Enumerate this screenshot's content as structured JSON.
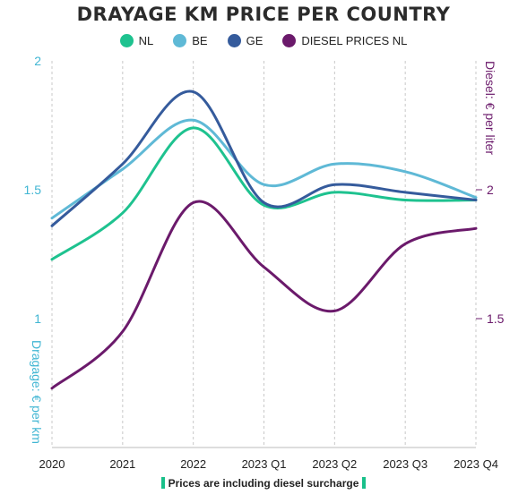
{
  "chart_data": {
    "type": "line",
    "title": "DRAYAGE KM PRICE PER COUNTRY",
    "categories": [
      "2020",
      "2021",
      "2022",
      "2023 Q1",
      "2023 Q2",
      "2023 Q3",
      "2023 Q4"
    ],
    "y_left": {
      "label": "Dragage: € per km",
      "ticks": [
        "2",
        "1.5",
        "1"
      ],
      "ylim": [
        0.5,
        2
      ]
    },
    "y_right": {
      "label": "Diesel: € per liter",
      "ticks": [
        "2",
        "1.5"
      ],
      "ylim": [
        1,
        2.5
      ]
    },
    "series": [
      {
        "name": "NL",
        "axis": "left",
        "color": "#1ec28f",
        "values": [
          1.23,
          1.41,
          1.74,
          1.44,
          1.49,
          1.46,
          1.46
        ]
      },
      {
        "name": "BE",
        "axis": "left",
        "color": "#5fb9d6",
        "values": [
          1.39,
          1.58,
          1.77,
          1.52,
          1.6,
          1.57,
          1.47
        ]
      },
      {
        "name": "GE",
        "axis": "left",
        "color": "#355b9c",
        "values": [
          1.36,
          1.6,
          1.88,
          1.45,
          1.52,
          1.49,
          1.46
        ]
      },
      {
        "name": "DIESEL PRICES NL",
        "axis": "right",
        "color": "#6b1a6b",
        "values": [
          1.23,
          1.45,
          1.95,
          1.7,
          1.53,
          1.79,
          1.85
        ]
      }
    ],
    "grid": "vertical dashed",
    "legend_position": "top"
  },
  "footnote": "Prices are including diesel surcharge"
}
